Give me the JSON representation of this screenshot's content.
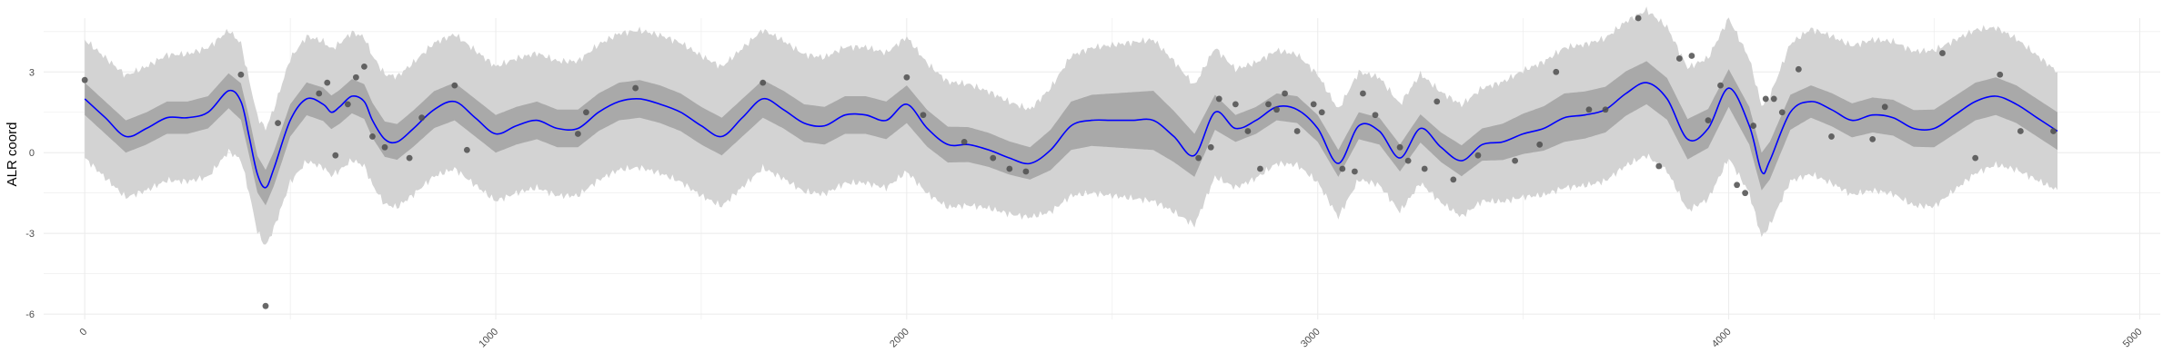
{
  "chart_data": {
    "type": "line",
    "title": "",
    "xlabel": "",
    "ylabel": "ALR coord",
    "xlim": [
      -100,
      5050
    ],
    "ylim": [
      -6.2,
      5.0
    ],
    "x_ticks": [
      0,
      1000,
      2000,
      3000,
      4000,
      5000
    ],
    "x_tick_labels": [
      "0",
      "1000",
      "2000",
      "3000",
      "4000",
      "5000"
    ],
    "y_ticks": [
      -6,
      -3,
      0,
      3
    ],
    "y_tick_labels": [
      "-6",
      "-3",
      "0",
      "3"
    ],
    "grid": true,
    "legend": "none",
    "colors": {
      "mean_line": "#0000ff",
      "inner_band": "#a9a9a9",
      "outer_band": "#d3d3d3",
      "points": "#4d4d4d",
      "grid": "#ebebeb"
    },
    "series": [
      {
        "kind": "posterior-mean",
        "x": [
          0,
          50,
          100,
          150,
          200,
          250,
          300,
          350,
          380,
          400,
          420,
          440,
          460,
          500,
          540,
          580,
          600,
          620,
          650,
          680,
          700,
          730,
          760,
          800,
          850,
          900,
          950,
          1000,
          1050,
          1100,
          1150,
          1200,
          1250,
          1300,
          1350,
          1400,
          1450,
          1500,
          1550,
          1600,
          1650,
          1700,
          1750,
          1800,
          1850,
          1900,
          1950,
          2000,
          2050,
          2100,
          2150,
          2200,
          2250,
          2300,
          2350,
          2400,
          2450,
          2500,
          2550,
          2600,
          2650,
          2700,
          2750,
          2800,
          2850,
          2900,
          2950,
          3000,
          3050,
          3100,
          3150,
          3200,
          3250,
          3300,
          3350,
          3400,
          3450,
          3500,
          3550,
          3600,
          3650,
          3700,
          3750,
          3800,
          3850,
          3900,
          3950,
          4000,
          4050,
          4080,
          4100,
          4150,
          4200,
          4250,
          4300,
          4350,
          4400,
          4450,
          4500,
          4550,
          4600,
          4650,
          4700,
          4750,
          4800
        ],
        "y": [
          2.0,
          1.3,
          0.6,
          0.9,
          1.3,
          1.3,
          1.5,
          2.3,
          1.9,
          0.6,
          -0.8,
          -1.3,
          -0.6,
          1.2,
          2.0,
          1.8,
          1.5,
          1.7,
          2.1,
          1.9,
          1.2,
          0.5,
          0.4,
          0.9,
          1.6,
          1.9,
          1.3,
          0.7,
          1.0,
          1.2,
          0.9,
          0.9,
          1.5,
          1.9,
          2.0,
          1.8,
          1.5,
          1.0,
          0.6,
          1.3,
          2.0,
          1.6,
          1.1,
          1.0,
          1.4,
          1.4,
          1.2,
          1.8,
          0.9,
          0.3,
          0.3,
          0.1,
          -0.2,
          -0.4,
          0.1,
          1.0,
          1.2,
          1.2,
          1.2,
          1.2,
          0.6,
          -0.1,
          1.5,
          0.9,
          1.2,
          1.7,
          1.6,
          0.9,
          -0.4,
          1.0,
          0.8,
          -0.2,
          0.9,
          0.2,
          -0.3,
          0.3,
          0.4,
          0.7,
          0.9,
          1.3,
          1.4,
          1.6,
          2.2,
          2.6,
          2.0,
          0.5,
          0.9,
          2.4,
          1.0,
          -0.7,
          -0.3,
          1.5,
          1.9,
          1.6,
          1.2,
          1.4,
          1.3,
          0.9,
          0.9,
          1.4,
          1.9,
          2.1,
          1.8,
          1.3,
          0.8
        ]
      },
      {
        "kind": "inner-band-halfwidth",
        "x": [
          0,
          300,
          400,
          500,
          900,
          1200,
          1500,
          2000,
          2300,
          2400,
          2600,
          2800,
          3000,
          3200,
          3400,
          3600,
          3800,
          4000,
          4100,
          4200,
          4500,
          4800
        ],
        "halfwidth": [
          0.6,
          0.6,
          0.7,
          0.6,
          0.7,
          0.7,
          0.7,
          0.7,
          0.6,
          0.9,
          1.1,
          0.5,
          0.5,
          0.5,
          0.6,
          0.9,
          0.8,
          0.7,
          0.7,
          0.6,
          0.7,
          0.7
        ]
      },
      {
        "kind": "outer-band-halfwidth",
        "x": [
          0,
          300,
          400,
          500,
          900,
          1200,
          1500,
          2000,
          2300,
          2400,
          2600,
          2800,
          3000,
          3200,
          3400,
          3600,
          3800,
          4000,
          4100,
          4200,
          4500,
          4800
        ],
        "halfwidth": [
          2.2,
          2.4,
          2.1,
          2.3,
          2.5,
          2.5,
          2.6,
          2.5,
          2.0,
          2.6,
          3.0,
          2.2,
          2.0,
          2.0,
          2.1,
          2.6,
          2.7,
          2.6,
          2.4,
          2.7,
          2.9,
          2.2
        ]
      },
      {
        "kind": "observations",
        "x": [
          0,
          380,
          440,
          470,
          570,
          590,
          610,
          640,
          660,
          680,
          700,
          730,
          790,
          820,
          900,
          930,
          1200,
          1220,
          1340,
          1650,
          2000,
          2040,
          2140,
          2210,
          2250,
          2290,
          2710,
          2740,
          2760,
          2800,
          2830,
          2860,
          2880,
          2900,
          2920,
          2950,
          2990,
          3010,
          3060,
          3090,
          3110,
          3140,
          3200,
          3220,
          3260,
          3290,
          3330,
          3390,
          3480,
          3540,
          3580,
          3660,
          3700,
          3780,
          3830,
          3880,
          3910,
          3950,
          3980,
          4020,
          4040,
          4060,
          4090,
          4110,
          4130,
          4170,
          4250,
          4350,
          4380,
          4520,
          4600,
          4660,
          4710,
          4790
        ],
        "y": [
          2.7,
          2.9,
          -5.7,
          1.1,
          2.2,
          2.6,
          -0.1,
          1.8,
          2.8,
          3.2,
          0.6,
          0.2,
          -0.2,
          1.3,
          2.5,
          0.1,
          0.7,
          1.5,
          2.4,
          2.6,
          2.8,
          1.4,
          0.4,
          -0.2,
          -0.6,
          -0.7,
          -0.2,
          0.2,
          2.0,
          1.8,
          0.8,
          -0.6,
          1.8,
          1.6,
          2.2,
          0.8,
          1.8,
          1.5,
          -0.6,
          -0.7,
          2.2,
          1.4,
          0.2,
          -0.3,
          -0.6,
          1.9,
          -1.0,
          -0.1,
          -0.3,
          0.3,
          3.0,
          1.6,
          1.6,
          5.0,
          -0.5,
          3.5,
          3.6,
          1.2,
          2.5,
          -1.2,
          -1.5,
          1.0,
          2.0,
          2.0,
          1.5,
          3.1,
          0.6,
          0.5,
          1.7,
          3.7,
          -0.2,
          2.9,
          0.8,
          0.8
        ]
      }
    ]
  }
}
